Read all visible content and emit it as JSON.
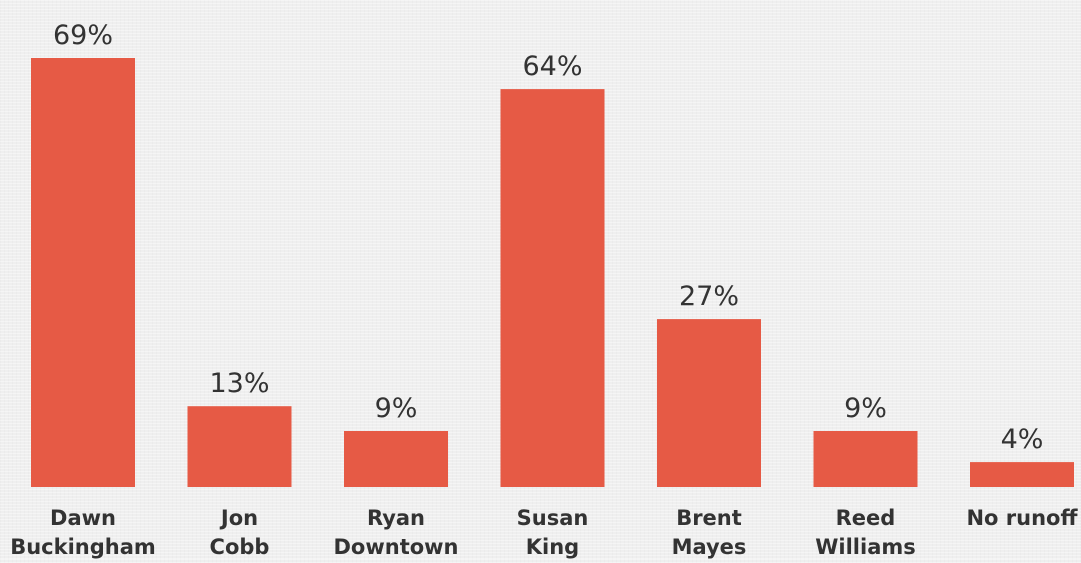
{
  "chart_data": {
    "type": "bar",
    "categories": [
      [
        "Dawn",
        "Buckingham"
      ],
      [
        "Jon",
        "Cobb"
      ],
      [
        "Ryan",
        "Downtown"
      ],
      [
        "Susan",
        "King"
      ],
      [
        "Brent",
        "Mayes"
      ],
      [
        "Reed",
        "Williams"
      ],
      [
        "No runoff"
      ]
    ],
    "values": [
      69,
      13,
      9,
      64,
      27,
      9,
      4
    ],
    "value_labels": [
      "69%",
      "13%",
      "9%",
      "64%",
      "27%",
      "9%",
      "4%"
    ],
    "ylim": [
      0,
      69
    ],
    "grid": false,
    "bar_color": "#e65a45",
    "label_color": "#333333",
    "background_color": "#efefef"
  }
}
